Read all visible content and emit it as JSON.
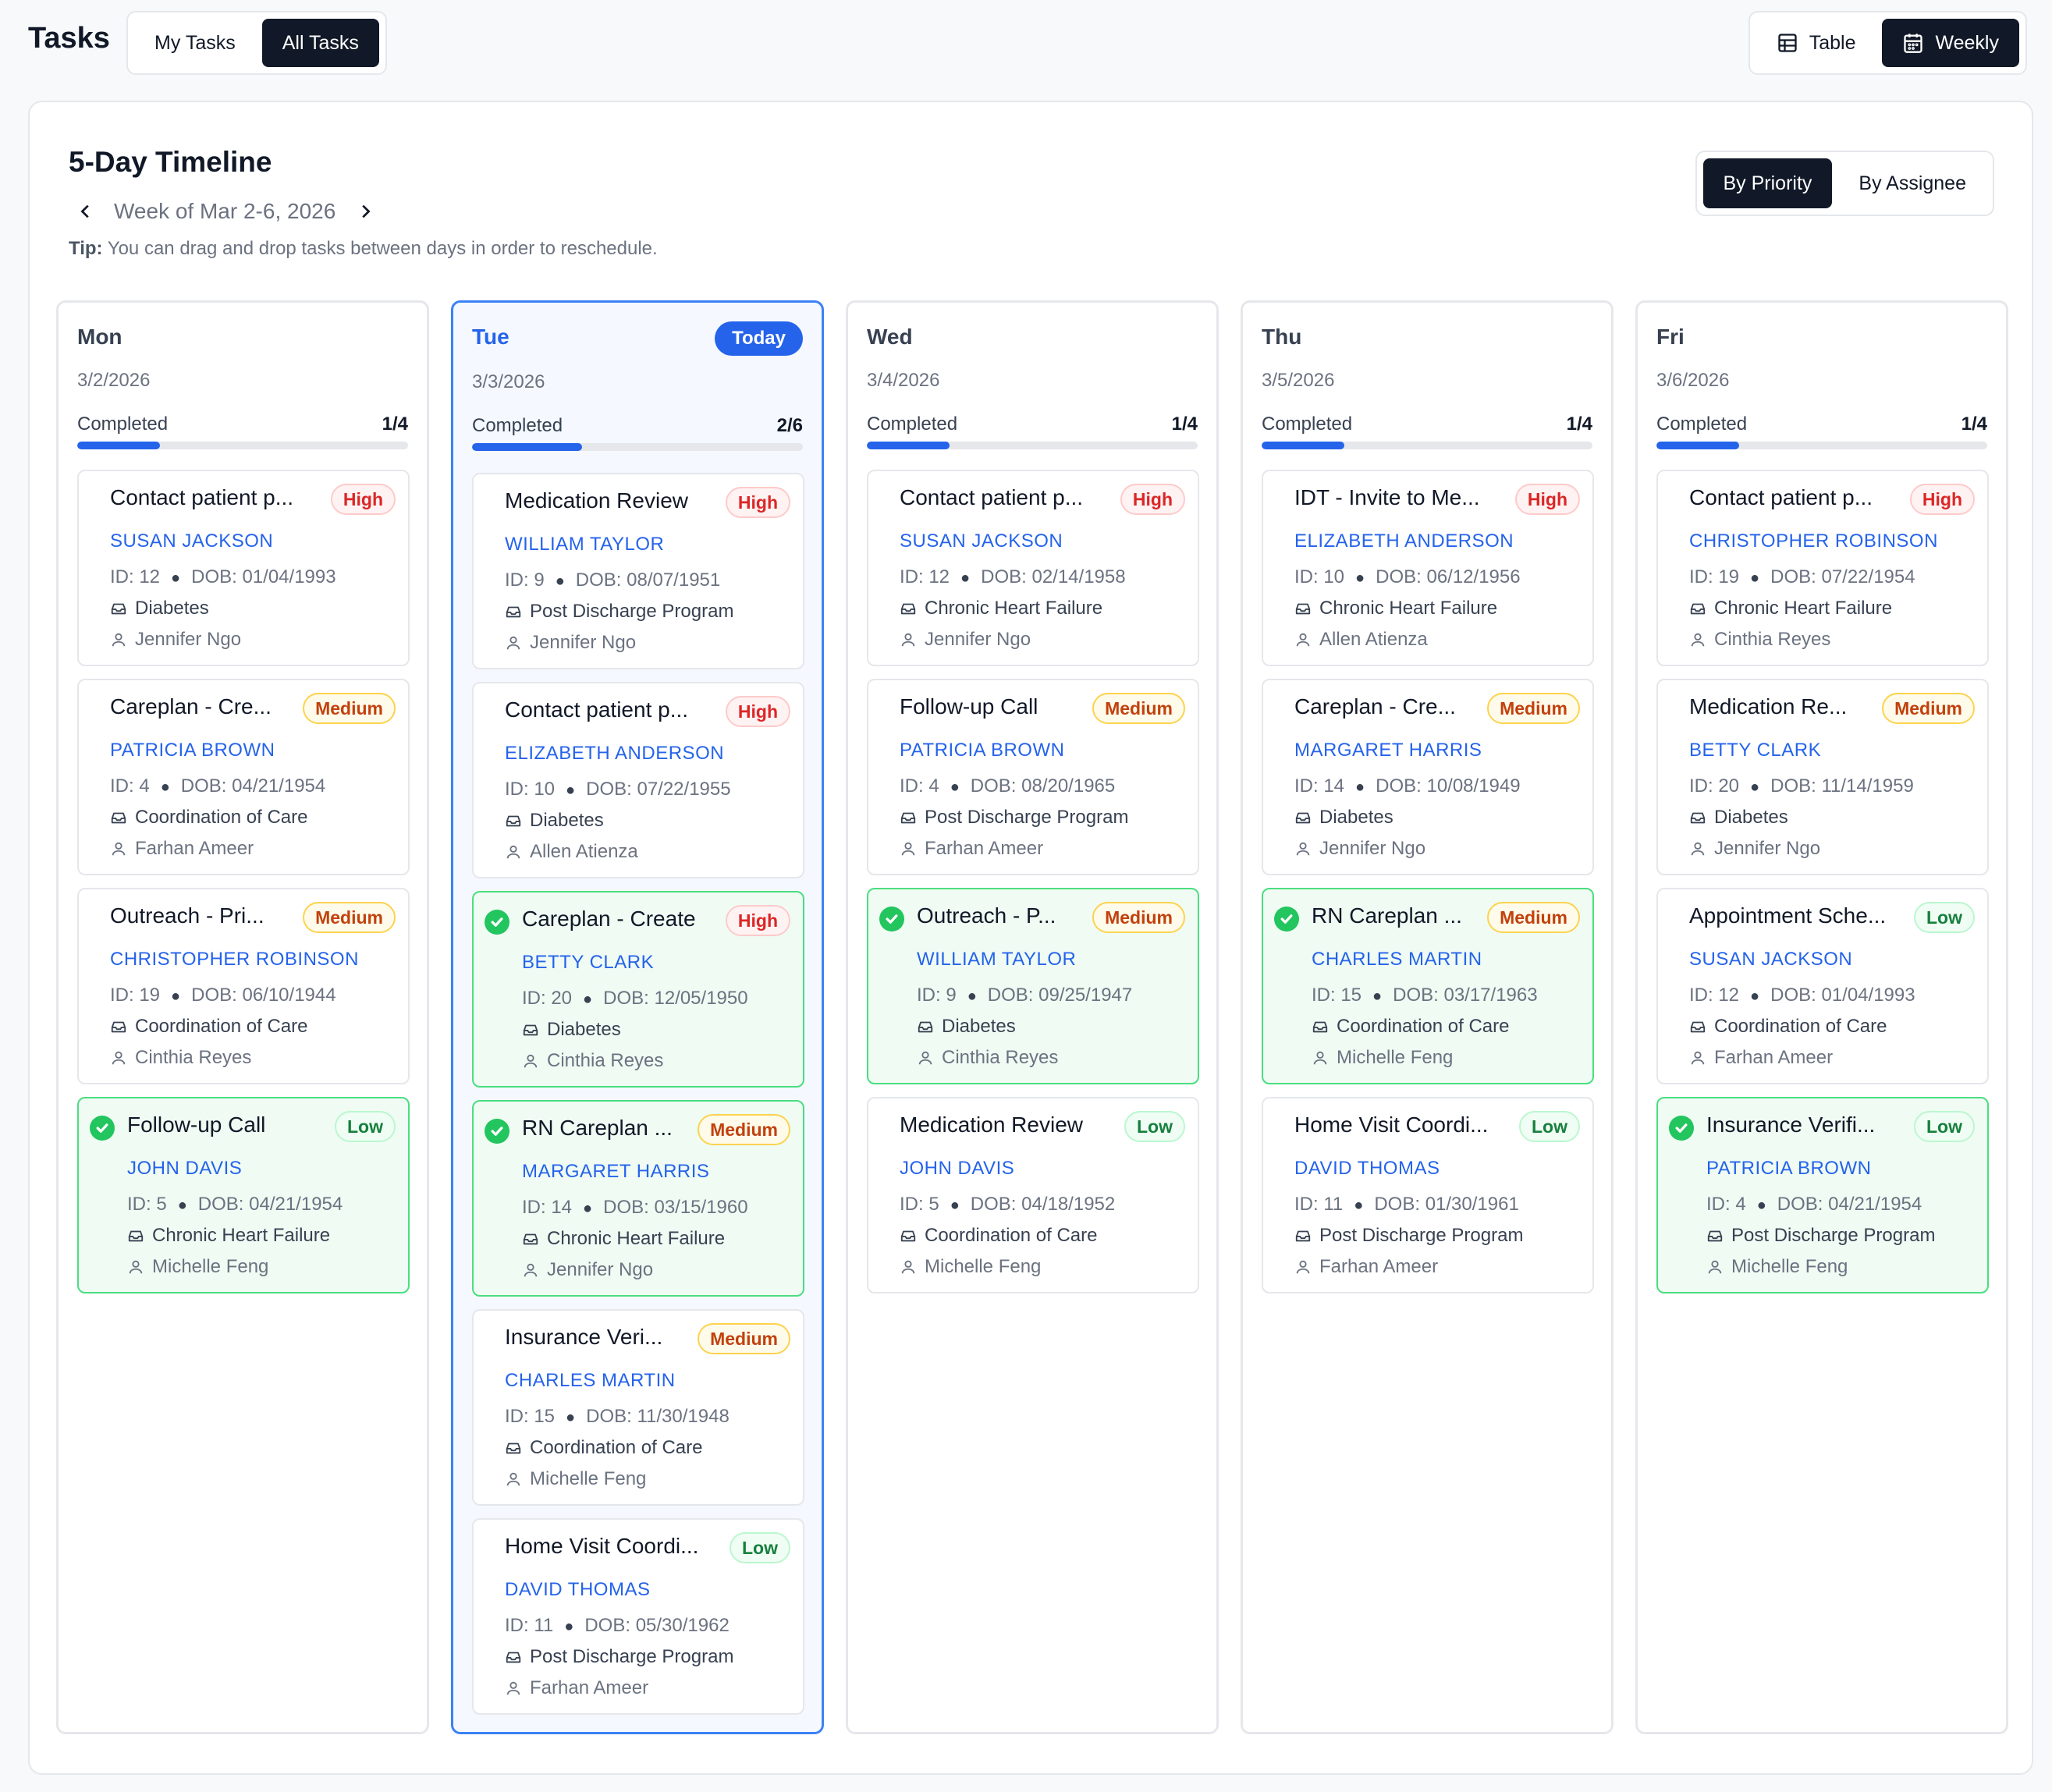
{
  "header": {
    "title": "Tasks",
    "scope_tabs": [
      "My Tasks",
      "All Tasks"
    ],
    "scope_active": "All Tasks",
    "view_tabs": [
      {
        "label": "Table",
        "icon": "table-icon"
      },
      {
        "label": "Weekly",
        "icon": "calendar-icon"
      }
    ],
    "view_active": "Weekly"
  },
  "timeline": {
    "title": "5-Day Timeline",
    "week_label": "Week of Mar 2-6, 2026",
    "tip_bold": "Tip:",
    "tip_text": " You can drag and drop tasks between days in order to reschedule.",
    "group_tabs": [
      "By Priority",
      "By Assignee"
    ],
    "group_active": "By Priority",
    "today_label": "Today",
    "completed_label": "Completed"
  },
  "colors": {
    "accent": "#2563eb",
    "done_bg": "#effbf3",
    "done_border": "#4ade80",
    "high": "#dc2626",
    "medium": "#c2410c",
    "low": "#15803d"
  },
  "days": [
    {
      "day": "Mon",
      "date": "3/2/2026",
      "completed": "1/4",
      "progress": 0.25,
      "today": false,
      "tasks": [
        {
          "title": "Contact patient p...",
          "priority": "High",
          "patient": "SUSAN JACKSON",
          "id": "ID: 12",
          "dob": "DOB: 01/04/1993",
          "program": "Diabetes",
          "assignee": "Jennifer Ngo",
          "done": false
        },
        {
          "title": "Careplan - Cre...",
          "priority": "Medium",
          "patient": "PATRICIA BROWN",
          "id": "ID: 4",
          "dob": "DOB: 04/21/1954",
          "program": "Coordination of Care",
          "assignee": "Farhan Ameer",
          "done": false
        },
        {
          "title": "Outreach - Pri...",
          "priority": "Medium",
          "patient": "CHRISTOPHER ROBINSON",
          "id": "ID: 19",
          "dob": "DOB: 06/10/1944",
          "program": "Coordination of Care",
          "assignee": "Cinthia Reyes",
          "done": false
        },
        {
          "title": "Follow-up Call",
          "priority": "Low",
          "patient": "JOHN DAVIS",
          "id": "ID: 5",
          "dob": "DOB: 04/21/1954",
          "program": "Chronic Heart Failure",
          "assignee": "Michelle Feng",
          "done": true
        }
      ]
    },
    {
      "day": "Tue",
      "date": "3/3/2026",
      "completed": "2/6",
      "progress": 0.333,
      "today": true,
      "tasks": [
        {
          "title": "Medication Review",
          "priority": "High",
          "patient": "WILLIAM TAYLOR",
          "id": "ID: 9",
          "dob": "DOB: 08/07/1951",
          "program": "Post Discharge Program",
          "assignee": "Jennifer Ngo",
          "done": false
        },
        {
          "title": "Contact patient p...",
          "priority": "High",
          "patient": "ELIZABETH ANDERSON",
          "id": "ID: 10",
          "dob": "DOB: 07/22/1955",
          "program": "Diabetes",
          "assignee": "Allen Atienza",
          "done": false
        },
        {
          "title": "Careplan - Create",
          "priority": "High",
          "patient": "BETTY CLARK",
          "id": "ID: 20",
          "dob": "DOB: 12/05/1950",
          "program": "Diabetes",
          "assignee": "Cinthia Reyes",
          "done": true
        },
        {
          "title": "RN Careplan ...",
          "priority": "Medium",
          "patient": "MARGARET HARRIS",
          "id": "ID: 14",
          "dob": "DOB: 03/15/1960",
          "program": "Chronic Heart Failure",
          "assignee": "Jennifer Ngo",
          "done": true
        },
        {
          "title": "Insurance Veri...",
          "priority": "Medium",
          "patient": "CHARLES MARTIN",
          "id": "ID: 15",
          "dob": "DOB: 11/30/1948",
          "program": "Coordination of Care",
          "assignee": "Michelle Feng",
          "done": false
        },
        {
          "title": "Home Visit Coordi...",
          "priority": "Low",
          "patient": "DAVID THOMAS",
          "id": "ID: 11",
          "dob": "DOB: 05/30/1962",
          "program": "Post Discharge Program",
          "assignee": "Farhan Ameer",
          "done": false
        }
      ]
    },
    {
      "day": "Wed",
      "date": "3/4/2026",
      "completed": "1/4",
      "progress": 0.25,
      "today": false,
      "tasks": [
        {
          "title": "Contact patient p...",
          "priority": "High",
          "patient": "SUSAN JACKSON",
          "id": "ID: 12",
          "dob": "DOB: 02/14/1958",
          "program": "Chronic Heart Failure",
          "assignee": "Jennifer Ngo",
          "done": false
        },
        {
          "title": "Follow-up Call",
          "priority": "Medium",
          "patient": "PATRICIA BROWN",
          "id": "ID: 4",
          "dob": "DOB: 08/20/1965",
          "program": "Post Discharge Program",
          "assignee": "Farhan Ameer",
          "done": false
        },
        {
          "title": "Outreach - P...",
          "priority": "Medium",
          "patient": "WILLIAM TAYLOR",
          "id": "ID: 9",
          "dob": "DOB: 09/25/1947",
          "program": "Diabetes",
          "assignee": "Cinthia Reyes",
          "done": true
        },
        {
          "title": "Medication Review",
          "priority": "Low",
          "patient": "JOHN DAVIS",
          "id": "ID: 5",
          "dob": "DOB: 04/18/1952",
          "program": "Coordination of Care",
          "assignee": "Michelle Feng",
          "done": false
        }
      ]
    },
    {
      "day": "Thu",
      "date": "3/5/2026",
      "completed": "1/4",
      "progress": 0.25,
      "today": false,
      "tasks": [
        {
          "title": "IDT - Invite to Me...",
          "priority": "High",
          "patient": "ELIZABETH ANDERSON",
          "id": "ID: 10",
          "dob": "DOB: 06/12/1956",
          "program": "Chronic Heart Failure",
          "assignee": "Allen Atienza",
          "done": false
        },
        {
          "title": "Careplan - Cre...",
          "priority": "Medium",
          "patient": "MARGARET HARRIS",
          "id": "ID: 14",
          "dob": "DOB: 10/08/1949",
          "program": "Diabetes",
          "assignee": "Jennifer Ngo",
          "done": false
        },
        {
          "title": "RN Careplan ...",
          "priority": "Medium",
          "patient": "CHARLES MARTIN",
          "id": "ID: 15",
          "dob": "DOB: 03/17/1963",
          "program": "Coordination of Care",
          "assignee": "Michelle Feng",
          "done": true
        },
        {
          "title": "Home Visit Coordi...",
          "priority": "Low",
          "patient": "DAVID THOMAS",
          "id": "ID: 11",
          "dob": "DOB: 01/30/1961",
          "program": "Post Discharge Program",
          "assignee": "Farhan Ameer",
          "done": false
        }
      ]
    },
    {
      "day": "Fri",
      "date": "3/6/2026",
      "completed": "1/4",
      "progress": 0.25,
      "today": false,
      "tasks": [
        {
          "title": "Contact patient p...",
          "priority": "High",
          "patient": "CHRISTOPHER ROBINSON",
          "id": "ID: 19",
          "dob": "DOB: 07/22/1954",
          "program": "Chronic Heart Failure",
          "assignee": "Cinthia Reyes",
          "done": false
        },
        {
          "title": "Medication Re...",
          "priority": "Medium",
          "patient": "BETTY CLARK",
          "id": "ID: 20",
          "dob": "DOB: 11/14/1959",
          "program": "Diabetes",
          "assignee": "Jennifer Ngo",
          "done": false
        },
        {
          "title": "Appointment Sche...",
          "priority": "Low",
          "patient": "SUSAN JACKSON",
          "id": "ID: 12",
          "dob": "DOB: 01/04/1993",
          "program": "Coordination of Care",
          "assignee": "Farhan Ameer",
          "done": false
        },
        {
          "title": "Insurance Verifi...",
          "priority": "Low",
          "patient": "PATRICIA BROWN",
          "id": "ID: 4",
          "dob": "DOB: 04/21/1954",
          "program": "Post Discharge Program",
          "assignee": "Michelle Feng",
          "done": true
        }
      ]
    }
  ]
}
